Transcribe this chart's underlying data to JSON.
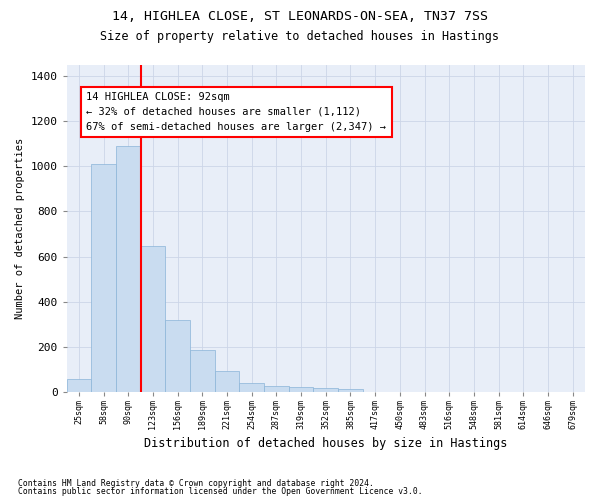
{
  "title_line1": "14, HIGHLEA CLOSE, ST LEONARDS-ON-SEA, TN37 7SS",
  "title_line2": "Size of property relative to detached houses in Hastings",
  "xlabel": "Distribution of detached houses by size in Hastings",
  "ylabel": "Number of detached properties",
  "footnote1": "Contains HM Land Registry data © Crown copyright and database right 2024.",
  "footnote2": "Contains public sector information licensed under the Open Government Licence v3.0.",
  "bar_labels": [
    "25sqm",
    "58sqm",
    "90sqm",
    "123sqm",
    "156sqm",
    "189sqm",
    "221sqm",
    "254sqm",
    "287sqm",
    "319sqm",
    "352sqm",
    "385sqm",
    "417sqm",
    "450sqm",
    "483sqm",
    "516sqm",
    "548sqm",
    "581sqm",
    "614sqm",
    "646sqm",
    "679sqm"
  ],
  "bar_values": [
    55,
    1010,
    1090,
    645,
    320,
    185,
    90,
    40,
    25,
    20,
    15,
    10,
    0,
    0,
    0,
    0,
    0,
    0,
    0,
    0,
    0
  ],
  "bar_color": "#c9dcf0",
  "bar_edge_color": "#8ab4d8",
  "ylim": [
    0,
    1450
  ],
  "yticks": [
    0,
    200,
    400,
    600,
    800,
    1000,
    1200,
    1400
  ],
  "vline_x": 2.5,
  "annotation_title": "14 HIGHLEA CLOSE: 92sqm",
  "annotation_line1": "← 32% of detached houses are smaller (1,112)",
  "annotation_line2": "67% of semi-detached houses are larger (2,347) →",
  "grid_color": "#ccd5e8",
  "background_color": "#e8eef8"
}
